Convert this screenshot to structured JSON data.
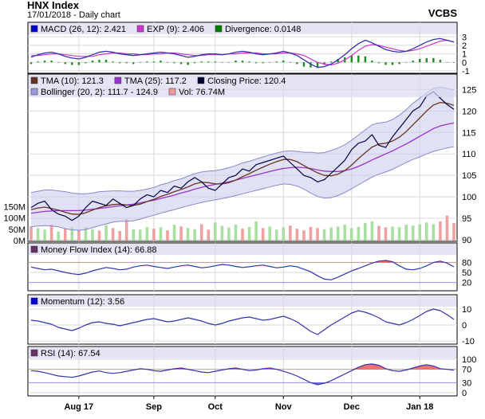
{
  "header": {
    "title": "HNX Index",
    "subtitle": "17/01/2018 - Daily chart",
    "brand": "VCBS"
  },
  "chart_data": [
    {
      "type": "line",
      "panel": "macd",
      "legend": [
        {
          "label": "MACD (26, 12): 2.421",
          "color": "#0000cc"
        },
        {
          "label": "EXP (9): 2.406",
          "color": "#cc33cc"
        },
        {
          "label": "Divergence: 0.0148",
          "color": "#008000"
        }
      ],
      "yticks": [
        3,
        2,
        1,
        0,
        -1
      ],
      "ylim": [
        -1.1,
        3.4
      ],
      "series": [
        {
          "name": "MACD (26, 12)",
          "color": "#3333aa",
          "values": [
            0.6,
            0.9,
            1.1,
            1.2,
            1.0,
            0.7,
            0.5,
            0.4,
            0.6,
            0.9,
            1.2,
            1.3,
            1.2,
            1.0,
            0.9,
            0.8,
            0.9,
            1.0,
            1.1,
            1.2,
            1.1,
            1.0,
            0.8,
            0.6,
            0.7,
            0.9,
            1.0,
            1.0,
            0.9,
            1.0,
            1.2,
            1.3,
            1.2,
            1.0,
            0.9,
            1.0,
            1.1,
            1.3,
            1.1,
            0.8,
            0.3,
            -0.2,
            -0.6,
            -0.5,
            -0.2,
            0.3,
            0.9,
            1.6,
            2.2,
            2.6,
            2.3,
            1.9,
            1.5,
            1.3,
            1.2,
            1.3,
            1.6,
            2.0,
            2.4,
            2.7,
            2.8,
            2.6,
            2.4
          ]
        },
        {
          "name": "EXP (9)",
          "color": "#cc33cc",
          "values": [
            0.8,
            0.8,
            0.9,
            1.0,
            1.0,
            0.9,
            0.8,
            0.7,
            0.7,
            0.7,
            0.9,
            1.0,
            1.1,
            1.1,
            1.0,
            1.0,
            0.9,
            0.9,
            1.0,
            1.0,
            1.1,
            1.1,
            1.0,
            0.9,
            0.8,
            0.8,
            0.9,
            0.9,
            0.9,
            1.0,
            1.0,
            1.1,
            1.1,
            1.1,
            1.0,
            1.0,
            1.0,
            1.1,
            1.1,
            1.0,
            0.8,
            0.4,
            0.0,
            -0.2,
            -0.3,
            -0.1,
            0.3,
            0.8,
            1.4,
            1.9,
            2.1,
            2.0,
            1.8,
            1.6,
            1.4,
            1.3,
            1.4,
            1.6,
            1.9,
            2.2,
            2.5,
            2.6,
            2.4
          ]
        },
        {
          "name": "Divergence",
          "color": "#008000",
          "kind": "histogram",
          "values": [
            -0.2,
            0.1,
            0.2,
            0.2,
            0.0,
            -0.2,
            -0.3,
            -0.3,
            -0.1,
            0.2,
            0.3,
            0.3,
            0.1,
            -0.1,
            -0.1,
            -0.2,
            0.0,
            0.1,
            0.1,
            0.2,
            0.0,
            -0.1,
            -0.2,
            -0.3,
            -0.1,
            0.1,
            0.1,
            0.1,
            0.0,
            0.0,
            0.2,
            0.2,
            0.1,
            -0.1,
            -0.1,
            0.0,
            0.1,
            0.2,
            0.0,
            -0.2,
            -0.5,
            -0.6,
            -0.6,
            -0.3,
            0.1,
            0.4,
            0.6,
            0.8,
            0.8,
            0.7,
            0.2,
            -0.1,
            -0.3,
            -0.3,
            -0.2,
            0.0,
            0.2,
            0.4,
            0.5,
            0.5,
            0.3,
            0.0,
            0.0
          ]
        }
      ]
    },
    {
      "type": "line",
      "panel": "price",
      "legend": [
        {
          "label": "TMA (10): 121.3",
          "color": "#663322"
        },
        {
          "label": "TMA (25): 117.2",
          "color": "#9933cc"
        },
        {
          "label": "Closing Price: 120.4",
          "color": "#000033"
        },
        {
          "label": "Bollinger (20, 2): 111.7 - 124.9",
          "color": "#9999dd"
        },
        {
          "label": "Vol: 76.74M",
          "color": "#ee9999"
        }
      ],
      "yticks": [
        125,
        120,
        115,
        110,
        105,
        100,
        95,
        90
      ],
      "ylim": [
        90,
        126
      ],
      "volume_ticks": [
        "150M",
        "100M",
        "50M",
        "0M"
      ],
      "volume_ylim": [
        0,
        200
      ],
      "series": [
        {
          "name": "Closing Price",
          "color": "#000044",
          "values": [
            97.5,
            98.5,
            99.0,
            97.0,
            96.0,
            95.5,
            94.5,
            95.5,
            97.5,
            99.0,
            98.5,
            98.0,
            99.5,
            98.5,
            97.5,
            98.0,
            99.5,
            100.5,
            100.0,
            101.5,
            101.0,
            102.5,
            102.0,
            103.5,
            104.5,
            103.5,
            102.0,
            101.5,
            103.0,
            104.5,
            105.0,
            106.5,
            106.0,
            107.5,
            108.0,
            108.5,
            109.0,
            109.5,
            108.0,
            106.5,
            105.0,
            104.5,
            103.5,
            104.0,
            105.5,
            107.0,
            108.5,
            111.0,
            112.5,
            113.0,
            114.5,
            112.0,
            111.5,
            114.0,
            116.0,
            118.0,
            120.0,
            121.0,
            123.5,
            124.5,
            123.0,
            121.5,
            120.4
          ]
        },
        {
          "name": "TMA (10)",
          "color": "#663322",
          "values": [
            97.0,
            97.4,
            97.6,
            97.3,
            96.9,
            96.4,
            96.0,
            95.9,
            96.3,
            96.9,
            97.5,
            97.9,
            98.2,
            98.3,
            98.1,
            98.0,
            98.3,
            98.9,
            99.4,
            100.1,
            100.6,
            101.2,
            101.7,
            102.3,
            103.0,
            103.4,
            103.3,
            103.0,
            103.0,
            103.3,
            103.9,
            104.7,
            105.4,
            106.2,
            106.9,
            107.6,
            108.2,
            108.7,
            108.7,
            108.2,
            107.3,
            106.4,
            105.6,
            105.0,
            104.9,
            105.3,
            106.1,
            107.4,
            108.9,
            110.3,
            111.6,
            112.3,
            112.5,
            113.0,
            113.9,
            115.2,
            116.8,
            118.4,
            120.0,
            121.4,
            122.0,
            121.8,
            121.3
          ]
        },
        {
          "name": "TMA (25)",
          "color": "#9933cc",
          "values": [
            96.2,
            96.4,
            96.6,
            96.7,
            96.8,
            96.8,
            96.8,
            96.8,
            96.9,
            97.1,
            97.3,
            97.5,
            97.7,
            97.9,
            98.1,
            98.3,
            98.6,
            98.9,
            99.2,
            99.6,
            100.0,
            100.4,
            100.9,
            101.3,
            101.8,
            102.2,
            102.6,
            102.9,
            103.2,
            103.5,
            103.9,
            104.3,
            104.7,
            105.1,
            105.5,
            105.9,
            106.3,
            106.6,
            106.8,
            106.9,
            106.8,
            106.6,
            106.3,
            106.0,
            105.9,
            105.9,
            106.1,
            106.5,
            107.1,
            107.8,
            108.6,
            109.3,
            110.0,
            110.7,
            111.5,
            112.3,
            113.2,
            114.1,
            115.0,
            115.9,
            116.5,
            116.9,
            117.2
          ]
        },
        {
          "name": "Bollinger upper",
          "color": "#9999dd",
          "values": [
            101.0,
            101.3,
            101.6,
            101.6,
            101.4,
            101.2,
            100.9,
            100.7,
            100.7,
            100.9,
            101.2,
            101.3,
            101.4,
            101.4,
            101.3,
            101.3,
            101.5,
            101.8,
            102.2,
            102.8,
            103.2,
            103.8,
            104.2,
            104.8,
            105.4,
            105.8,
            106.0,
            106.1,
            106.4,
            106.8,
            107.3,
            107.9,
            108.3,
            108.8,
            109.3,
            109.8,
            110.2,
            110.6,
            110.7,
            110.6,
            110.4,
            110.4,
            110.2,
            110.3,
            110.8,
            111.4,
            112.1,
            113.2,
            114.4,
            115.6,
            116.8,
            117.2,
            117.4,
            118.0,
            119.0,
            120.3,
            121.8,
            123.0,
            124.2,
            125.3,
            125.6,
            125.3,
            124.9
          ]
        },
        {
          "name": "Bollinger lower",
          "color": "#9999dd",
          "values": [
            93.0,
            93.2,
            93.3,
            93.2,
            93.0,
            92.6,
            92.3,
            92.2,
            92.4,
            92.8,
            93.3,
            93.7,
            94.1,
            94.3,
            94.3,
            94.4,
            94.8,
            95.3,
            95.7,
            96.2,
            96.6,
            97.0,
            97.5,
            97.9,
            98.3,
            98.7,
            99.0,
            99.3,
            99.6,
            99.9,
            100.3,
            100.7,
            101.1,
            101.5,
            101.9,
            102.3,
            102.7,
            103.0,
            102.9,
            102.5,
            101.8,
            100.9,
            100.1,
            99.7,
            99.8,
            100.3,
            101.0,
            101.9,
            102.8,
            103.7,
            104.6,
            105.3,
            105.8,
            106.4,
            107.2,
            108.0,
            108.7,
            109.3,
            110.0,
            110.6,
            111.0,
            111.4,
            111.7
          ]
        }
      ],
      "volume": [
        62,
        55,
        48,
        70,
        40,
        52,
        58,
        45,
        60,
        50,
        44,
        68,
        55,
        42,
        95,
        50,
        48,
        60,
        52,
        58,
        45,
        70,
        62,
        55,
        50,
        72,
        48,
        80,
        65,
        58,
        70,
        52,
        60,
        85,
        55,
        62,
        48,
        58,
        66,
        52,
        45,
        60,
        55,
        50,
        58,
        62,
        70,
        55,
        60,
        78,
        85,
        65,
        58,
        62,
        60,
        70,
        66,
        72,
        80,
        72,
        85,
        110,
        76.74
      ],
      "volume_colors": [
        "r",
        "g",
        "g",
        "r",
        "g",
        "r",
        "g",
        "r",
        "g",
        "g",
        "r",
        "g",
        "r",
        "r",
        "r",
        "g",
        "g",
        "g",
        "r",
        "g",
        "r",
        "g",
        "r",
        "g",
        "g",
        "r",
        "r",
        "g",
        "g",
        "g",
        "g",
        "r",
        "g",
        "g",
        "r",
        "g",
        "g",
        "g",
        "r",
        "r",
        "r",
        "r",
        "r",
        "g",
        "g",
        "g",
        "g",
        "g",
        "g",
        "g",
        "g",
        "r",
        "r",
        "g",
        "g",
        "g",
        "g",
        "g",
        "g",
        "g",
        "r",
        "r",
        "r"
      ]
    },
    {
      "type": "area",
      "panel": "mfi",
      "legend": [
        {
          "label": "Money Flow Index (14): 66.88",
          "color": "#663366"
        }
      ],
      "yticks": [
        80,
        50,
        20
      ],
      "ylim": [
        0,
        105
      ],
      "series": [
        {
          "name": "Money Flow Index (14)",
          "color": "#3333aa",
          "values": [
            66,
            62,
            58,
            60,
            55,
            50,
            46,
            44,
            48,
            55,
            60,
            65,
            62,
            58,
            60,
            66,
            70,
            72,
            68,
            65,
            62,
            66,
            70,
            72,
            68,
            64,
            66,
            70,
            74,
            72,
            68,
            65,
            67,
            70,
            72,
            68,
            64,
            66,
            70,
            67,
            60,
            52,
            40,
            30,
            28,
            36,
            45,
            55,
            62,
            70,
            78,
            84,
            86,
            82,
            70,
            60,
            58,
            62,
            70,
            80,
            84,
            78,
            66.88
          ]
        }
      ]
    },
    {
      "type": "line",
      "panel": "momentum",
      "legend": [
        {
          "label": "Momentum (12): 3.56",
          "color": "#0000cc"
        }
      ],
      "yticks": [
        10,
        0,
        -10
      ],
      "ylim": [
        -11,
        12
      ],
      "series": [
        {
          "name": "Momentum (12)",
          "color": "#3333aa",
          "values": [
            3.0,
            2.5,
            1.5,
            0.5,
            -1.5,
            -2.5,
            -3.5,
            -2.0,
            0.0,
            1.5,
            2.0,
            1.0,
            0.5,
            -0.5,
            0.5,
            1.5,
            2.5,
            3.5,
            4.0,
            3.0,
            2.0,
            2.5,
            3.5,
            4.5,
            3.5,
            2.5,
            1.0,
            0.0,
            1.0,
            2.5,
            3.5,
            4.5,
            5.0,
            4.0,
            3.0,
            3.5,
            4.5,
            5.5,
            4.0,
            2.0,
            -1.0,
            -4.0,
            -6.0,
            -3.0,
            0.0,
            2.5,
            5.0,
            7.5,
            9.0,
            8.0,
            6.5,
            4.5,
            2.0,
            1.0,
            0.0,
            1.5,
            3.5,
            6.0,
            8.5,
            10.0,
            9.0,
            6.5,
            3.56
          ]
        }
      ]
    },
    {
      "type": "area",
      "panel": "rsi",
      "legend": [
        {
          "label": "RSI (14): 67.54",
          "color": "#663366"
        }
      ],
      "yticks": [
        100,
        70,
        30,
        0
      ],
      "ylim": [
        -5,
        105
      ],
      "series": [
        {
          "name": "RSI (14)",
          "color": "#3333aa",
          "values": [
            66,
            64,
            60,
            55,
            50,
            48,
            46,
            50,
            56,
            62,
            65,
            60,
            58,
            60,
            64,
            68,
            72,
            70,
            66,
            64,
            68,
            72,
            74,
            70,
            66,
            62,
            60,
            64,
            68,
            72,
            74,
            70,
            66,
            68,
            72,
            74,
            70,
            64,
            58,
            50,
            40,
            30,
            24,
            28,
            36,
            46,
            56,
            66,
            76,
            84,
            86,
            82,
            72,
            66,
            64,
            68,
            74,
            80,
            84,
            80,
            72,
            70,
            67.54
          ]
        }
      ]
    }
  ],
  "x_axis": {
    "ticks": [
      "Aug 17",
      "Sep",
      "Oct",
      "Nov",
      "Dec",
      "Jan 18"
    ],
    "tick_index": [
      7,
      18,
      27,
      37,
      47,
      57
    ]
  }
}
